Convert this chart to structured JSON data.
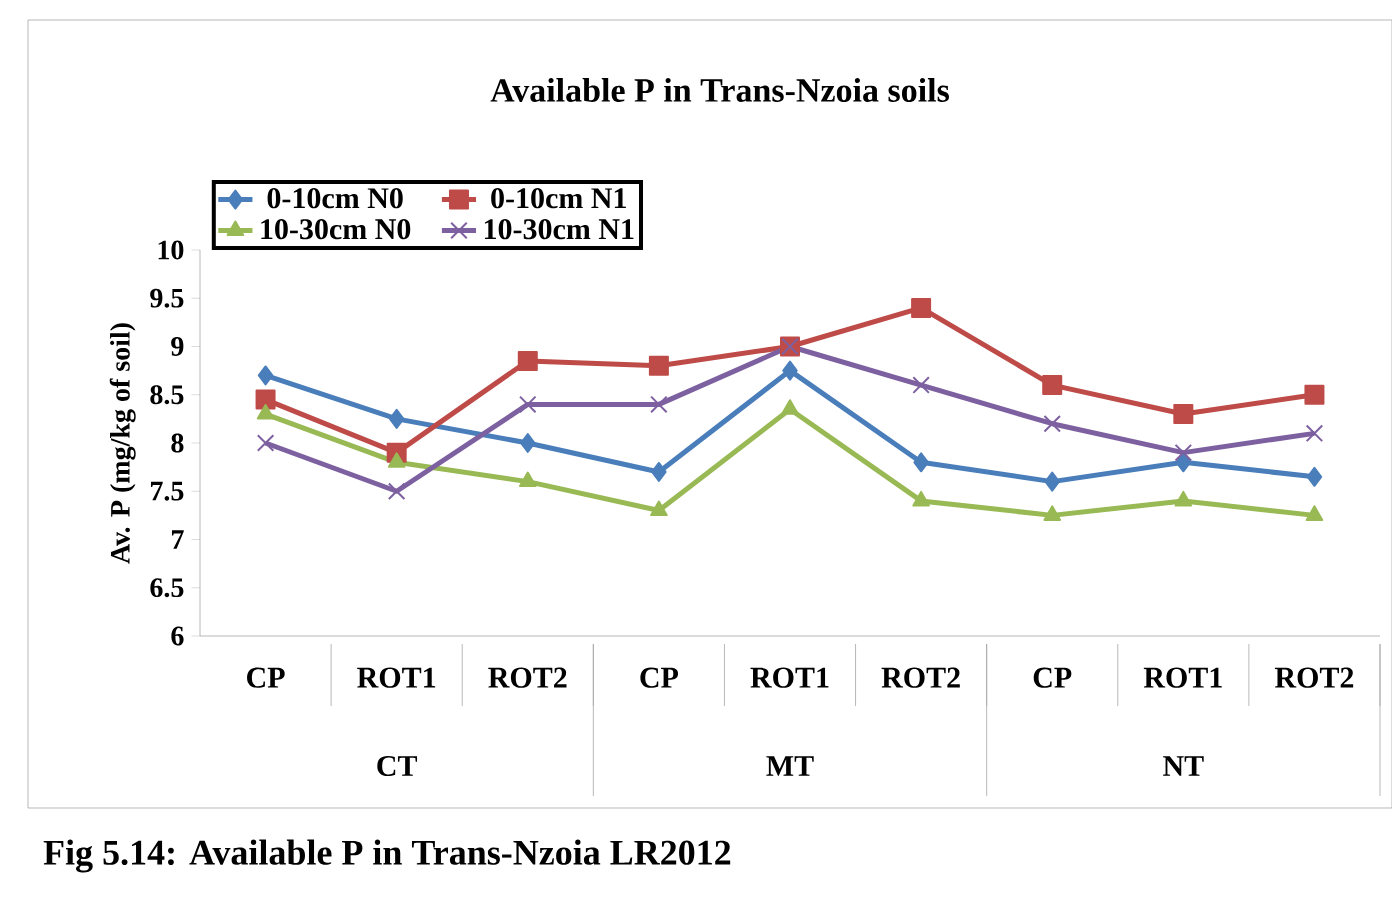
{
  "chart_data": {
    "type": "line",
    "title": "Available P in Trans-Nzoia soils",
    "ylabel": "Av. P (mg/kg of soil)",
    "categories": [
      "CP",
      "ROT1",
      "ROT2",
      "CP",
      "ROT1",
      "ROT2",
      "CP",
      "ROT1",
      "ROT2"
    ],
    "series": [
      {
        "name": "0-10cm N0",
        "color": "#4a7ebb",
        "marker": "diamond",
        "values": [
          8.7,
          8.25,
          8.0,
          7.7,
          8.75,
          7.8,
          7.6,
          7.8,
          7.65
        ]
      },
      {
        "name": "0-10cm N1",
        "color": "#be4b48",
        "marker": "square",
        "values": [
          8.45,
          7.9,
          8.85,
          8.8,
          9.0,
          9.4,
          8.6,
          8.3,
          8.5
        ]
      },
      {
        "name": "10-30cm N0",
        "color": "#98b954",
        "marker": "triangle",
        "values": [
          8.3,
          7.8,
          7.6,
          7.3,
          8.35,
          7.4,
          7.25,
          7.4,
          7.25
        ]
      },
      {
        "name": "10-30cm N1",
        "color": "#7d60a0",
        "marker": "cross",
        "values": [
          8.0,
          7.5,
          8.4,
          8.4,
          9.0,
          8.6,
          8.2,
          7.9,
          8.1
        ]
      }
    ],
    "ylim": [
      6,
      10
    ],
    "yticks": [
      6,
      6.5,
      7,
      7.5,
      8,
      8.5,
      9,
      9.5,
      10
    ],
    "legend": "top left",
    "grid": false,
    "annotations": [
      "CT",
      "MT",
      "NT",
      "Fig 5.14: Available P in Trans-Nzoia LR2012"
    ]
  }
}
